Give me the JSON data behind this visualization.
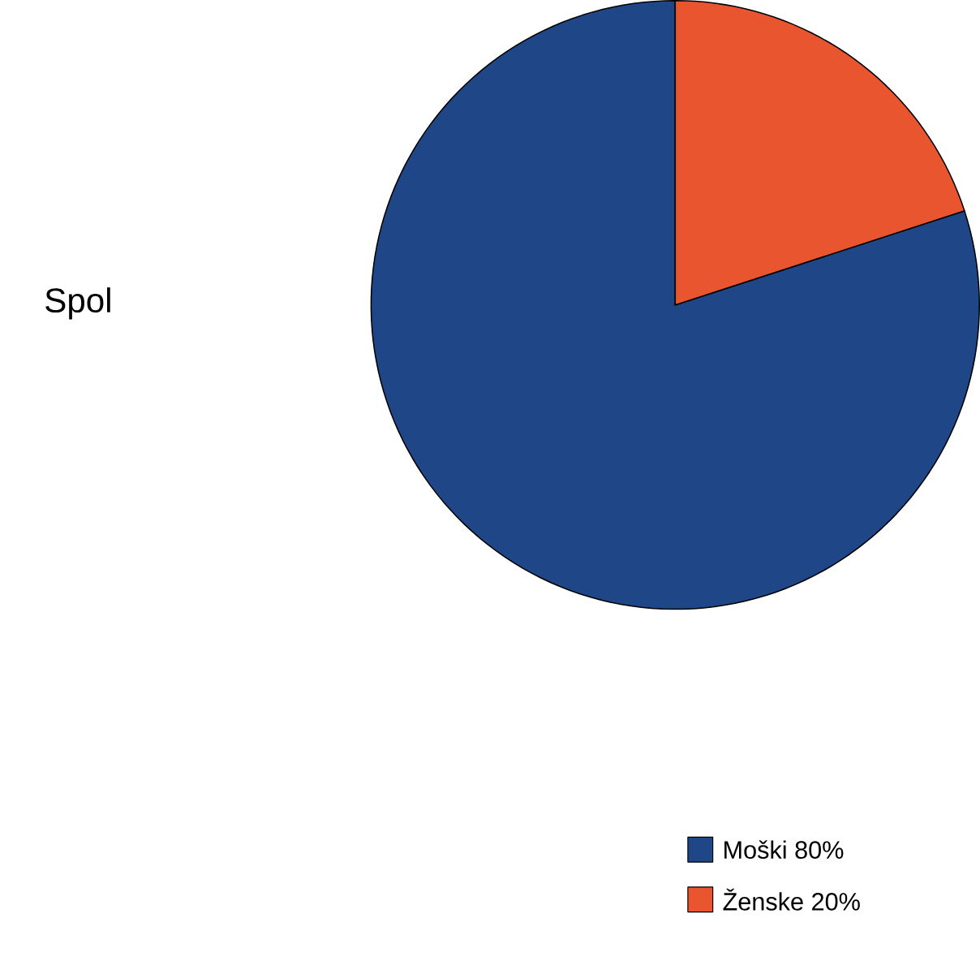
{
  "chart_data": {
    "type": "pie",
    "title": "Spol",
    "categories": [
      "Moški",
      "Ženske"
    ],
    "values": [
      80,
      20
    ],
    "value_labels": [
      "80%",
      "20%"
    ],
    "colors": [
      "#1f4687",
      "#e8552f"
    ],
    "legend": "bottom right"
  }
}
